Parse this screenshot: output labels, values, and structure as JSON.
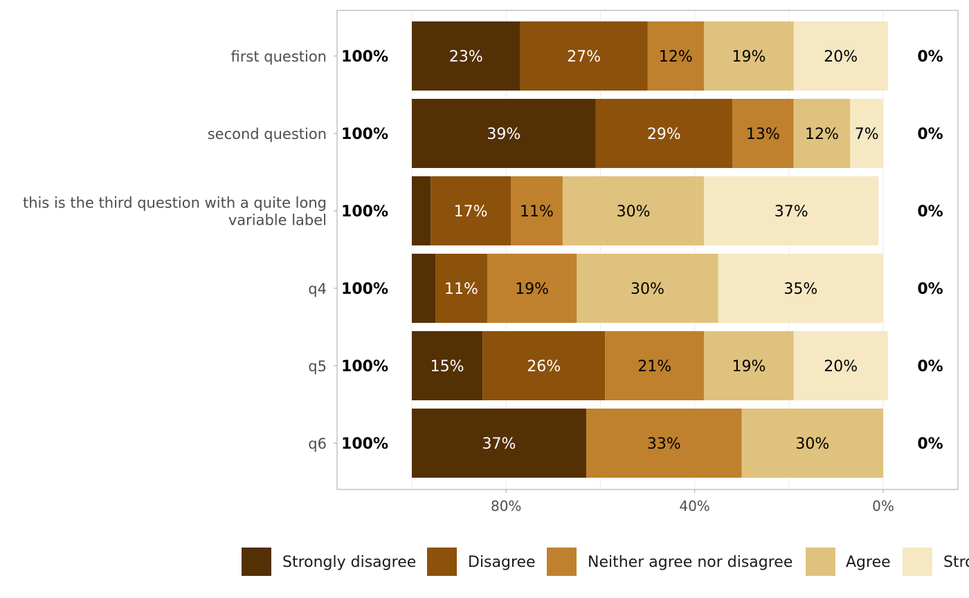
{
  "chart_data": {
    "type": "bar",
    "orientation": "horizontal",
    "stacked": true,
    "categories": [
      "first question",
      "second question",
      "this is the third question with a quite long variable label",
      "q4",
      "q5",
      "q6"
    ],
    "category_label_lines": [
      [
        "first question"
      ],
      [
        "second question"
      ],
      [
        "this is the third question with a quite long",
        "variable label"
      ],
      [
        "q4"
      ],
      [
        "q5"
      ],
      [
        "q6"
      ]
    ],
    "series": [
      {
        "name": "Strongly disagree",
        "color": "#543005",
        "label_color": "#ffffff",
        "values": [
          23,
          39,
          4,
          5,
          15,
          37
        ],
        "labels": [
          "23%",
          "39%",
          "",
          "",
          "15%",
          "37%"
        ]
      },
      {
        "name": "Disagree",
        "color": "#8c510a",
        "label_color": "#ffffff",
        "values": [
          27,
          29,
          17,
          11,
          26,
          0
        ],
        "labels": [
          "27%",
          "29%",
          "17%",
          "11%",
          "26%",
          ""
        ]
      },
      {
        "name": "Neither agree nor disagree",
        "color": "#bf812d",
        "label_color": "#000000",
        "values": [
          12,
          13,
          11,
          19,
          21,
          33
        ],
        "labels": [
          "12%",
          "13%",
          "11%",
          "19%",
          "21%",
          "33%"
        ]
      },
      {
        "name": "Agree",
        "color": "#dfc27d",
        "label_color": "#000000",
        "values": [
          19,
          12,
          30,
          30,
          19,
          30
        ],
        "labels": [
          "19%",
          "12%",
          "30%",
          "30%",
          "19%",
          "30%"
        ]
      },
      {
        "name": "Strongly agree",
        "color": "#f6e8c3",
        "label_color": "#000000",
        "values": [
          20,
          7,
          37,
          35,
          20,
          0
        ],
        "labels": [
          "20%",
          "7%",
          "37%",
          "35%",
          "20%",
          ""
        ]
      }
    ],
    "left_totals": [
      "100%",
      "100%",
      "100%",
      "100%",
      "100%",
      "100%"
    ],
    "right_totals": [
      "0%",
      "0%",
      "0%",
      "0%",
      "0%",
      "0%"
    ],
    "x_ticks": [
      {
        "value": 80,
        "label": "80%"
      },
      {
        "value": 40,
        "label": "40%"
      },
      {
        "value": 0,
        "label": "0%"
      }
    ],
    "xlim": [
      -32,
      100
    ],
    "x_reversed": true,
    "title": "",
    "xlabel": "",
    "ylabel": "",
    "grid": true,
    "legend_position": "bottom",
    "legend_visible_text": [
      "Strongly disagree",
      "Disagree",
      "Neither agree nor disagree",
      "Agree",
      "Stro"
    ]
  }
}
